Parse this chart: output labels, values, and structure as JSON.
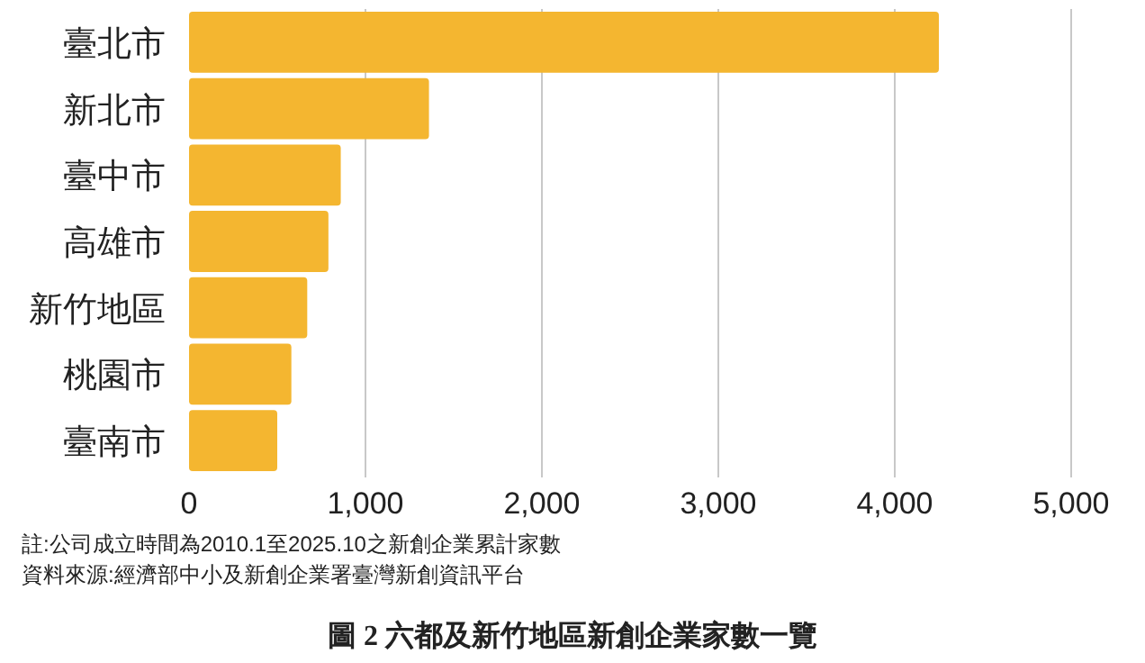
{
  "chart_data": {
    "type": "bar",
    "orientation": "horizontal",
    "title": "圖 2 六都及新竹地區新創企業家數一覽",
    "categories": [
      "臺北市",
      "新北市",
      "臺中市",
      "高雄市",
      "新竹地區",
      "桃園市",
      "臺南市"
    ],
    "values": [
      4250,
      1360,
      860,
      790,
      670,
      580,
      500
    ],
    "color": "#f4b630",
    "xlim": [
      0,
      5000
    ],
    "xticks": [
      0,
      {
        "value": 1000,
        "label": "1,000"
      },
      {
        "value": 2000,
        "label": "2,000"
      },
      {
        "value": 3000,
        "label": "3,000"
      },
      {
        "value": 4000,
        "label": "4,000"
      },
      {
        "value": 5000,
        "label": "5,000"
      }
    ],
    "grid": "x",
    "annotations": [
      "註:公司成立時間為2010.1至2025.10之新創企業累計家數",
      "資料來源:經濟部中小及新創企業署臺灣新創資訊平台"
    ]
  }
}
